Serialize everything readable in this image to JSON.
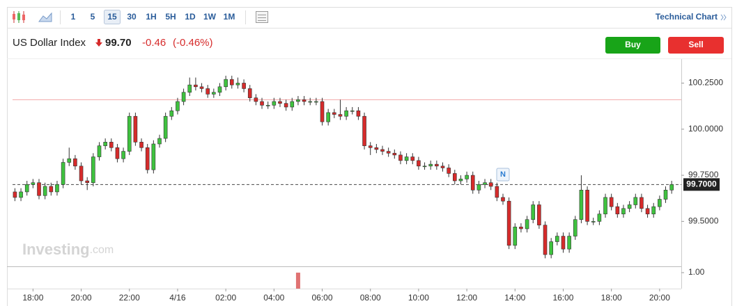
{
  "toolbar": {
    "intervals": [
      "1",
      "5",
      "15",
      "30",
      "1H",
      "5H",
      "1D",
      "1W",
      "1M"
    ],
    "active": "15",
    "link": "Technical Chart"
  },
  "header": {
    "title": "US Dollar Index",
    "price": "99.70",
    "change": "-0.46",
    "change_percent": "(-0.46%)",
    "buy": "Buy",
    "sell": "Sell"
  },
  "watermark": {
    "brand": "Investing",
    "suffix": ".com"
  },
  "chart_data": {
    "type": "candlestick",
    "x": [
      -6.75,
      -6.5,
      -6.25,
      -6,
      -5.75,
      -5.5,
      -5.25,
      -5,
      -4.75,
      -4.5,
      -4.25,
      -4,
      -3.75,
      -3.5,
      -3.25,
      -3,
      -2.75,
      -2.5,
      -2.25,
      -2,
      -1.75,
      -1.5,
      -1.25,
      -1,
      -0.75,
      -0.5,
      -0.25,
      0,
      0.25,
      0.5,
      0.75,
      1,
      1.25,
      1.5,
      1.75,
      2,
      2.25,
      2.5,
      2.75,
      3,
      3.25,
      3.5,
      3.75,
      4,
      4.25,
      4.5,
      4.75,
      5,
      5.25,
      5.5,
      5.75,
      6,
      6.25,
      6.5,
      6.75,
      7,
      7.25,
      7.5,
      7.75,
      8,
      8.25,
      8.5,
      8.75,
      9,
      9.25,
      9.5,
      9.75,
      10,
      10.25,
      10.5,
      10.75,
      11,
      11.25,
      11.5,
      11.75,
      12,
      12.25,
      12.5,
      12.75,
      13,
      13.25,
      13.5,
      13.75,
      14,
      14.25,
      14.5,
      14.75,
      15,
      15.25,
      15.5,
      15.75,
      16,
      16.25,
      16.5,
      16.75,
      17,
      17.25,
      17.5,
      17.75,
      18,
      18.25,
      18.5,
      18.75,
      19,
      19.25,
      19.5,
      19.75,
      20,
      20.25,
      20.5
    ],
    "open": [
      99.66,
      99.63,
      99.66,
      99.7,
      99.71,
      99.64,
      99.69,
      99.66,
      99.7,
      99.82,
      99.84,
      99.8,
      99.72,
      99.71,
      99.85,
      99.91,
      99.93,
      99.9,
      99.84,
      99.88,
      100.07,
      99.93,
      99.9,
      99.78,
      99.92,
      99.95,
      100.07,
      100.1,
      100.15,
      100.2,
      100.24,
      100.23,
      100.22,
      100.19,
      100.2,
      100.23,
      100.27,
      100.24,
      100.25,
      100.22,
      100.17,
      100.15,
      100.13,
      100.13,
      100.15,
      100.14,
      100.12,
      100.15,
      100.16,
      100.15,
      100.15,
      100.15,
      100.04,
      100.09,
      100.08,
      100.07,
      100.1,
      100.1,
      100.07,
      99.91,
      99.9,
      99.89,
      99.88,
      99.87,
      99.86,
      99.83,
      99.85,
      99.83,
      99.8,
      99.8,
      99.81,
      99.8,
      99.79,
      99.76,
      99.72,
      99.73,
      99.75,
      99.67,
      99.7,
      99.71,
      99.69,
      99.63,
      99.61,
      99.37,
      99.47,
      99.46,
      99.51,
      99.59,
      99.48,
      99.32,
      99.39,
      99.42,
      99.35,
      99.42,
      99.51,
      99.67,
      99.5,
      99.5,
      99.54,
      99.63,
      99.58,
      99.54,
      99.57,
      99.59,
      99.63,
      99.57,
      99.54,
      99.58,
      99.62,
      99.67
    ],
    "high": [
      99.68,
      99.68,
      99.72,
      99.73,
      99.73,
      99.71,
      99.71,
      99.72,
      99.84,
      99.9,
      99.86,
      99.82,
      99.74,
      99.87,
      99.93,
      99.95,
      99.95,
      99.92,
      99.9,
      100.09,
      100.09,
      99.95,
      99.92,
      99.94,
      99.97,
      100.09,
      100.12,
      100.17,
      100.22,
      100.28,
      100.28,
      100.25,
      100.24,
      100.22,
      100.25,
      100.29,
      100.29,
      100.28,
      100.27,
      100.24,
      100.19,
      100.17,
      100.15,
      100.17,
      100.17,
      100.16,
      100.17,
      100.18,
      100.18,
      100.17,
      100.17,
      100.17,
      100.11,
      100.11,
      100.16,
      100.12,
      100.12,
      100.12,
      100.09,
      99.93,
      99.92,
      99.91,
      99.9,
      99.89,
      99.88,
      99.87,
      99.87,
      99.85,
      99.82,
      99.83,
      99.83,
      99.82,
      99.81,
      99.78,
      99.75,
      99.77,
      99.77,
      99.72,
      99.73,
      99.73,
      99.71,
      99.65,
      99.63,
      99.49,
      99.49,
      99.53,
      99.61,
      99.61,
      99.5,
      99.41,
      99.44,
      99.44,
      99.44,
      99.53,
      99.75,
      99.69,
      99.52,
      99.56,
      99.65,
      99.65,
      99.6,
      99.59,
      99.61,
      99.65,
      99.65,
      99.59,
      99.6,
      99.64,
      99.69,
      99.72
    ],
    "low": [
      99.61,
      99.61,
      99.64,
      99.68,
      99.62,
      99.62,
      99.64,
      99.64,
      99.68,
      99.8,
      99.78,
      99.7,
      99.67,
      99.69,
      99.83,
      99.89,
      99.88,
      99.82,
      99.82,
      99.86,
      99.91,
      99.88,
      99.76,
      99.76,
      99.9,
      99.93,
      100.05,
      100.08,
      100.13,
      100.18,
      100.21,
      100.2,
      100.17,
      100.17,
      100.18,
      100.21,
      100.22,
      100.22,
      100.2,
      100.15,
      100.13,
      100.11,
      100.11,
      100.11,
      100.12,
      100.1,
      100.1,
      100.13,
      100.13,
      100.13,
      100.13,
      100.02,
      100.02,
      100.06,
      100.05,
      100.05,
      100.08,
      100.05,
      99.89,
      99.86,
      99.87,
      99.86,
      99.85,
      99.84,
      99.81,
      99.81,
      99.81,
      99.78,
      99.78,
      99.78,
      99.78,
      99.77,
      99.74,
      99.7,
      99.7,
      99.71,
      99.65,
      99.65,
      99.68,
      99.67,
      99.61,
      99.59,
      99.35,
      99.35,
      99.44,
      99.44,
      99.49,
      99.46,
      99.3,
      99.3,
      99.37,
      99.33,
      99.33,
      99.4,
      99.49,
      99.48,
      99.48,
      99.48,
      99.52,
      99.56,
      99.52,
      99.52,
      99.55,
      99.57,
      99.55,
      99.52,
      99.52,
      99.56,
      99.6,
      99.65
    ],
    "close": [
      99.63,
      99.66,
      99.7,
      99.71,
      99.64,
      99.69,
      99.66,
      99.7,
      99.82,
      99.84,
      99.8,
      99.72,
      99.71,
      99.85,
      99.91,
      99.93,
      99.9,
      99.84,
      99.88,
      100.07,
      99.93,
      99.9,
      99.78,
      99.92,
      99.95,
      100.07,
      100.1,
      100.15,
      100.2,
      100.24,
      100.23,
      100.22,
      100.19,
      100.2,
      100.23,
      100.27,
      100.24,
      100.25,
      100.22,
      100.17,
      100.15,
      100.13,
      100.13,
      100.15,
      100.14,
      100.12,
      100.15,
      100.16,
      100.15,
      100.15,
      100.15,
      100.04,
      100.09,
      100.08,
      100.07,
      100.1,
      100.1,
      100.07,
      99.91,
      99.9,
      99.89,
      99.88,
      99.87,
      99.86,
      99.83,
      99.85,
      99.83,
      99.8,
      99.8,
      99.81,
      99.8,
      99.79,
      99.76,
      99.72,
      99.73,
      99.75,
      99.67,
      99.7,
      99.71,
      99.69,
      99.63,
      99.61,
      99.37,
      99.47,
      99.46,
      99.51,
      99.59,
      99.48,
      99.32,
      99.39,
      99.42,
      99.35,
      99.42,
      99.51,
      99.67,
      99.5,
      99.5,
      99.54,
      99.63,
      99.58,
      99.54,
      99.57,
      99.59,
      99.63,
      99.57,
      99.54,
      99.58,
      99.62,
      99.67,
      99.7
    ],
    "up_color": "#3fc23f",
    "down_color": "#d62b2b",
    "xlim": [
      -7.08,
      20.9
    ],
    "xticks": [
      {
        "value": -6,
        "label": "18:00"
      },
      {
        "value": -4,
        "label": "20:00"
      },
      {
        "value": -2,
        "label": "22:00"
      },
      {
        "value": 0,
        "label": "4/16"
      },
      {
        "value": 2,
        "label": "02:00"
      },
      {
        "value": 4,
        "label": "04:00"
      },
      {
        "value": 6,
        "label": "06:00"
      },
      {
        "value": 8,
        "label": "08:00"
      },
      {
        "value": 10,
        "label": "10:00"
      },
      {
        "value": 12,
        "label": "12:00"
      },
      {
        "value": 14,
        "label": "14:00"
      },
      {
        "value": 16,
        "label": "16:00"
      },
      {
        "value": 18,
        "label": "18:00"
      },
      {
        "value": 20,
        "label": "20:00"
      }
    ],
    "ylim": [
      99.26,
      100.38
    ],
    "yticks": [
      {
        "value": 99.5,
        "label": "99.5000"
      },
      {
        "value": 99.75,
        "label": "99.7500"
      },
      {
        "value": 100,
        "label": "100.0000"
      },
      {
        "value": 100.25,
        "label": "100.2500"
      }
    ],
    "previous_close": 100.16,
    "previous_close_color": "#f2a8a8",
    "last": 99.7,
    "last_label": "99.7000",
    "annotations": [
      {
        "x": 13.5,
        "label": "N"
      }
    ],
    "volume": {
      "x": [
        5
      ],
      "values": [
        1
      ],
      "color": "#e07272",
      "ylim": [
        0,
        1.35
      ],
      "yticks": [
        {
          "value": 1,
          "label": "1.00"
        }
      ]
    }
  }
}
